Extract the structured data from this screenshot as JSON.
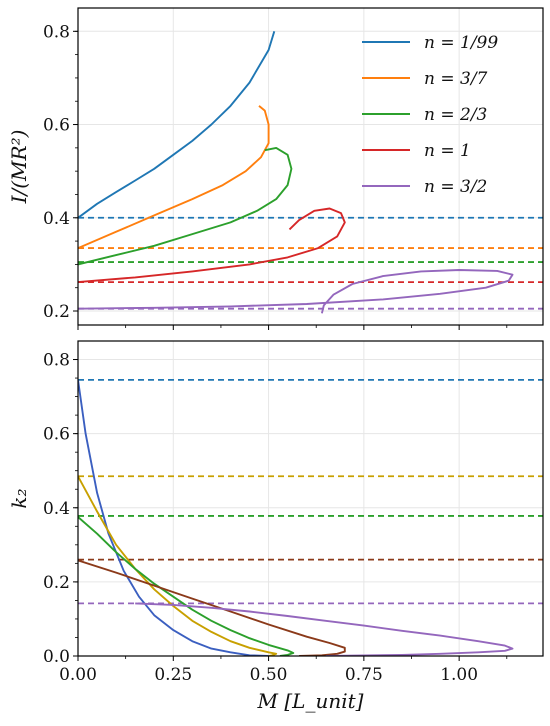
{
  "chart_data": [
    {
      "type": "line",
      "panel": "top",
      "ylabel": "I/(MR²)",
      "xlabel": "",
      "xlim": [
        0,
        1.22
      ],
      "ylim": [
        0.17,
        0.85
      ],
      "yticks": [
        "0.2",
        "0.4",
        "0.6",
        "0.8"
      ],
      "grid": true,
      "legend_position": "top-right",
      "series": [
        {
          "name": "n = 1/99",
          "color": "#1f77b4",
          "x": [
            0.0,
            0.05,
            0.1,
            0.15,
            0.2,
            0.25,
            0.3,
            0.35,
            0.4,
            0.45,
            0.5,
            0.515
          ],
          "y": [
            0.4,
            0.43,
            0.455,
            0.48,
            0.505,
            0.535,
            0.565,
            0.6,
            0.64,
            0.69,
            0.76,
            0.8
          ]
        },
        {
          "name": "n = 3/7",
          "color": "#ff7f0e",
          "x": [
            0.0,
            0.1,
            0.2,
            0.3,
            0.38,
            0.44,
            0.48,
            0.5,
            0.5,
            0.49,
            0.475
          ],
          "y": [
            0.335,
            0.37,
            0.405,
            0.44,
            0.47,
            0.5,
            0.53,
            0.56,
            0.6,
            0.63,
            0.64
          ]
        },
        {
          "name": "n = 2/3",
          "color": "#2ca02c",
          "x": [
            0.0,
            0.1,
            0.2,
            0.3,
            0.4,
            0.47,
            0.52,
            0.55,
            0.56,
            0.55,
            0.52,
            0.49
          ],
          "y": [
            0.3,
            0.32,
            0.34,
            0.365,
            0.39,
            0.415,
            0.44,
            0.47,
            0.505,
            0.535,
            0.55,
            0.545
          ]
        },
        {
          "name": "n = 1",
          "color": "#d62728",
          "x": [
            0.0,
            0.15,
            0.3,
            0.45,
            0.55,
            0.63,
            0.68,
            0.7,
            0.69,
            0.66,
            0.62,
            0.58,
            0.555
          ],
          "y": [
            0.262,
            0.272,
            0.285,
            0.3,
            0.315,
            0.335,
            0.36,
            0.39,
            0.41,
            0.42,
            0.415,
            0.395,
            0.375
          ]
        },
        {
          "name": "n = 3/2",
          "color": "#9467bd",
          "x": [
            0.0,
            0.2,
            0.4,
            0.6,
            0.8,
            0.95,
            1.07,
            1.13,
            1.14,
            1.1,
            1.0,
            0.9,
            0.8,
            0.72,
            0.67,
            0.645,
            0.64
          ],
          "y": [
            0.205,
            0.207,
            0.21,
            0.215,
            0.225,
            0.237,
            0.25,
            0.265,
            0.278,
            0.286,
            0.288,
            0.285,
            0.275,
            0.258,
            0.235,
            0.212,
            0.195
          ]
        }
      ],
      "reference_lines": [
        {
          "y": 0.4,
          "color": "#1f77b4"
        },
        {
          "y": 0.335,
          "color": "#ff7f0e"
        },
        {
          "y": 0.305,
          "color": "#2ca02c"
        },
        {
          "y": 0.262,
          "color": "#d62728"
        },
        {
          "y": 0.205,
          "color": "#9467bd"
        }
      ]
    },
    {
      "type": "line",
      "panel": "bottom",
      "ylabel": "k₂",
      "xlabel": "M [L_unit]",
      "xlim": [
        0,
        1.22
      ],
      "ylim": [
        0,
        0.85
      ],
      "xticks": [
        "0.00",
        "0.25",
        "0.50",
        "0.75",
        "1.00"
      ],
      "yticks": [
        "0.0",
        "0.2",
        "0.4",
        "0.6",
        "0.8"
      ],
      "grid": true,
      "series": [
        {
          "color": "#3b5fc0",
          "x": [
            0.0,
            0.02,
            0.05,
            0.08,
            0.12,
            0.16,
            0.2,
            0.25,
            0.3,
            0.35,
            0.4,
            0.45,
            0.5
          ],
          "y": [
            0.745,
            0.6,
            0.44,
            0.33,
            0.23,
            0.16,
            0.11,
            0.07,
            0.04,
            0.02,
            0.01,
            0.002,
            0.0
          ]
        },
        {
          "color": "#c8a000",
          "x": [
            0.0,
            0.05,
            0.1,
            0.15,
            0.2,
            0.25,
            0.3,
            0.35,
            0.4,
            0.45,
            0.5,
            0.52,
            0.51,
            0.5
          ],
          "y": [
            0.485,
            0.39,
            0.3,
            0.235,
            0.18,
            0.135,
            0.095,
            0.065,
            0.04,
            0.022,
            0.01,
            0.006,
            0.002,
            0.0
          ]
        },
        {
          "color": "#2ca02c",
          "x": [
            0.0,
            0.05,
            0.1,
            0.15,
            0.2,
            0.25,
            0.3,
            0.35,
            0.4,
            0.45,
            0.5,
            0.55,
            0.565,
            0.55,
            0.53
          ],
          "y": [
            0.375,
            0.33,
            0.28,
            0.235,
            0.195,
            0.16,
            0.125,
            0.095,
            0.07,
            0.048,
            0.03,
            0.015,
            0.008,
            0.003,
            0.0
          ]
        },
        {
          "color": "#8b3a1a",
          "x": [
            0.0,
            0.1,
            0.2,
            0.3,
            0.4,
            0.5,
            0.6,
            0.66,
            0.7,
            0.7,
            0.68,
            0.64,
            0.58
          ],
          "y": [
            0.258,
            0.225,
            0.19,
            0.155,
            0.12,
            0.085,
            0.052,
            0.035,
            0.022,
            0.012,
            0.006,
            0.002,
            0.0
          ]
        },
        {
          "color": "#9467bd",
          "x": [
            0.15,
            0.25,
            0.35,
            0.45,
            0.55,
            0.65,
            0.75,
            0.85,
            0.95,
            1.05,
            1.12,
            1.14,
            1.12,
            1.05,
            0.95,
            0.85,
            0.75,
            0.68,
            0.65
          ],
          "y": [
            0.142,
            0.138,
            0.13,
            0.12,
            0.108,
            0.095,
            0.082,
            0.068,
            0.055,
            0.04,
            0.028,
            0.02,
            0.014,
            0.01,
            0.006,
            0.003,
            0.0015,
            0.0005,
            0.0
          ]
        }
      ],
      "reference_lines": [
        {
          "y": 0.745,
          "color": "#1f77b4"
        },
        {
          "y": 0.485,
          "color": "#c8a000"
        },
        {
          "y": 0.378,
          "color": "#2ca02c"
        },
        {
          "y": 0.26,
          "color": "#8b3a1a"
        },
        {
          "y": 0.142,
          "color": "#9467bd"
        }
      ]
    }
  ]
}
